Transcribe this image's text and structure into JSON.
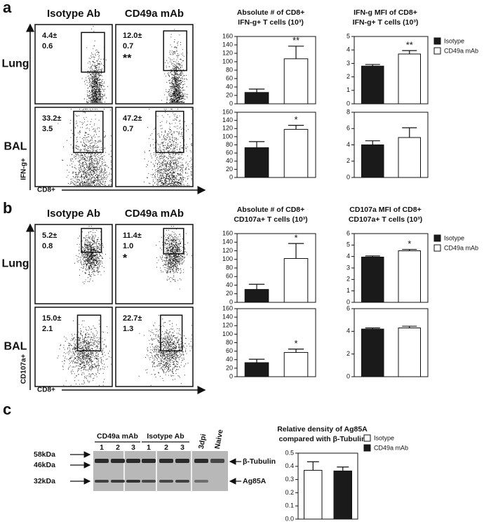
{
  "panels": [
    "a",
    "b",
    "c"
  ],
  "flow": [
    {
      "columns": [
        "Isotype Ab",
        "CD49a mAb"
      ],
      "rows": [
        "Lung",
        "BAL"
      ],
      "y_axis": "IFN-g+",
      "x_axis": "CD8+",
      "gates": [
        [
          "4.4±",
          "0.6"
        ],
        [
          "12.0±",
          "0.7",
          "**"
        ],
        [
          "33.2±",
          "3.5"
        ],
        [
          "47.2±",
          "0.7"
        ]
      ]
    },
    {
      "columns": [
        "Isotype Ab",
        "CD49a mAb"
      ],
      "rows": [
        "Lung",
        "BAL"
      ],
      "y_axis": "CD107a+",
      "x_axis": "CD8+",
      "gates": [
        [
          "5.2±",
          "0.8"
        ],
        [
          "11.4±",
          "1.0",
          "*"
        ],
        [
          "15.0±",
          "2.1"
        ],
        [
          "22.7±",
          "1.3"
        ]
      ]
    }
  ],
  "blot": {
    "groups": [
      "CD49a mAb",
      "Isotype Ab"
    ],
    "lanes": [
      "1",
      "2",
      "3",
      "1",
      "2",
      "3",
      "3dpi",
      "Naive"
    ],
    "markers": [
      "58kDa",
      "46kDa",
      "32kDa"
    ],
    "bands": [
      "β-Tubulin",
      "Ag85A"
    ]
  },
  "chart_data": [
    {
      "type": "bar",
      "title": [
        "Absolute # of CD8+",
        "IFN-g+ T cells (10³)"
      ],
      "ylim": [
        0,
        160
      ],
      "yticks": [
        0,
        20,
        40,
        60,
        80,
        100,
        120,
        140,
        160
      ],
      "series": [
        {
          "name": "Isotype",
          "color": "#1a1a1a",
          "values": [
            27
          ],
          "errors": [
            8
          ]
        },
        {
          "name": "CD49a mAb",
          "color": "#ffffff",
          "values": [
            107
          ],
          "errors": [
            30
          ]
        }
      ],
      "annotation": "**"
    },
    {
      "type": "bar",
      "title": [
        "IFN-g MFI of CD8+",
        "IFN-g+ T cells (10³)"
      ],
      "ylim": [
        0,
        5
      ],
      "yticks": [
        0,
        1,
        2,
        3,
        4,
        5
      ],
      "series": [
        {
          "name": "Isotype",
          "color": "#1a1a1a",
          "values": [
            2.8
          ],
          "errors": [
            0.12
          ]
        },
        {
          "name": "CD49a mAb",
          "color": "#ffffff",
          "values": [
            3.7
          ],
          "errors": [
            0.25
          ]
        }
      ],
      "annotation": "**",
      "legend": "right"
    },
    {
      "type": "bar",
      "ylim": [
        0,
        160
      ],
      "yticks": [
        0,
        20,
        40,
        60,
        80,
        100,
        120,
        140,
        160
      ],
      "series": [
        {
          "name": "Isotype",
          "color": "#1a1a1a",
          "values": [
            73
          ],
          "errors": [
            15
          ]
        },
        {
          "name": "CD49a mAb",
          "color": "#ffffff",
          "values": [
            118
          ],
          "errors": [
            10
          ]
        }
      ],
      "annotation": "*"
    },
    {
      "type": "bar",
      "ylim": [
        0,
        8
      ],
      "yticks": [
        0,
        2,
        4,
        6,
        8
      ],
      "series": [
        {
          "name": "Isotype",
          "color": "#1a1a1a",
          "values": [
            4.0
          ],
          "errors": [
            0.5
          ]
        },
        {
          "name": "CD49a mAb",
          "color": "#ffffff",
          "values": [
            4.9
          ],
          "errors": [
            1.2
          ]
        }
      ]
    },
    {
      "type": "bar",
      "title": [
        "Absolute # of CD8+",
        "CD107a+ T cells (10³)"
      ],
      "ylim": [
        0,
        160
      ],
      "yticks": [
        0,
        20,
        40,
        60,
        80,
        100,
        120,
        140,
        160
      ],
      "series": [
        {
          "name": "Isotype",
          "color": "#1a1a1a",
          "values": [
            30
          ],
          "errors": [
            12
          ]
        },
        {
          "name": "CD49a mAb",
          "color": "#ffffff",
          "values": [
            102
          ],
          "errors": [
            35
          ]
        }
      ],
      "annotation": "*"
    },
    {
      "type": "bar",
      "title": [
        "CD107a MFI of CD8+",
        "CD107a+ T cells (10³)"
      ],
      "ylim": [
        0,
        6
      ],
      "yticks": [
        0,
        1,
        2,
        3,
        4,
        5,
        6
      ],
      "series": [
        {
          "name": "Isotype",
          "color": "#1a1a1a",
          "values": [
            3.95
          ],
          "errors": [
            0.1
          ]
        },
        {
          "name": "CD49a mAb",
          "color": "#ffffff",
          "values": [
            4.5
          ],
          "errors": [
            0.12
          ]
        }
      ],
      "annotation": "*",
      "legend": "right"
    },
    {
      "type": "bar",
      "ylim": [
        0,
        160
      ],
      "yticks": [
        0,
        20,
        40,
        60,
        80,
        100,
        120,
        140,
        160
      ],
      "series": [
        {
          "name": "Isotype",
          "color": "#1a1a1a",
          "values": [
            33
          ],
          "errors": [
            8
          ]
        },
        {
          "name": "CD49a mAb",
          "color": "#ffffff",
          "values": [
            57
          ],
          "errors": [
            8
          ]
        }
      ],
      "annotation": "*"
    },
    {
      "type": "bar",
      "ylim": [
        0,
        6
      ],
      "yticks": [
        0,
        2,
        4,
        6
      ],
      "series": [
        {
          "name": "Isotype",
          "color": "#1a1a1a",
          "values": [
            4.2
          ],
          "errors": [
            0.1
          ]
        },
        {
          "name": "CD49a mAb",
          "color": "#ffffff",
          "values": [
            4.3
          ],
          "errors": [
            0.15
          ]
        }
      ]
    },
    {
      "type": "bar",
      "title": [
        "Relative density of Ag85A",
        "compared with β-Tubulin"
      ],
      "ylim": [
        0,
        0.5
      ],
      "yticks": [
        {
          "value": 0,
          "label": "0.0"
        },
        0.1,
        0.2,
        0.3,
        0.4,
        0.5
      ],
      "series": [
        {
          "name": "Isotype",
          "color": "#ffffff",
          "values": [
            0.37
          ],
          "errors": [
            0.065
          ]
        },
        {
          "name": "CD49a mAb",
          "color": "#1a1a1a",
          "values": [
            0.365
          ],
          "errors": [
            0.03
          ]
        }
      ],
      "legend": "right"
    }
  ]
}
